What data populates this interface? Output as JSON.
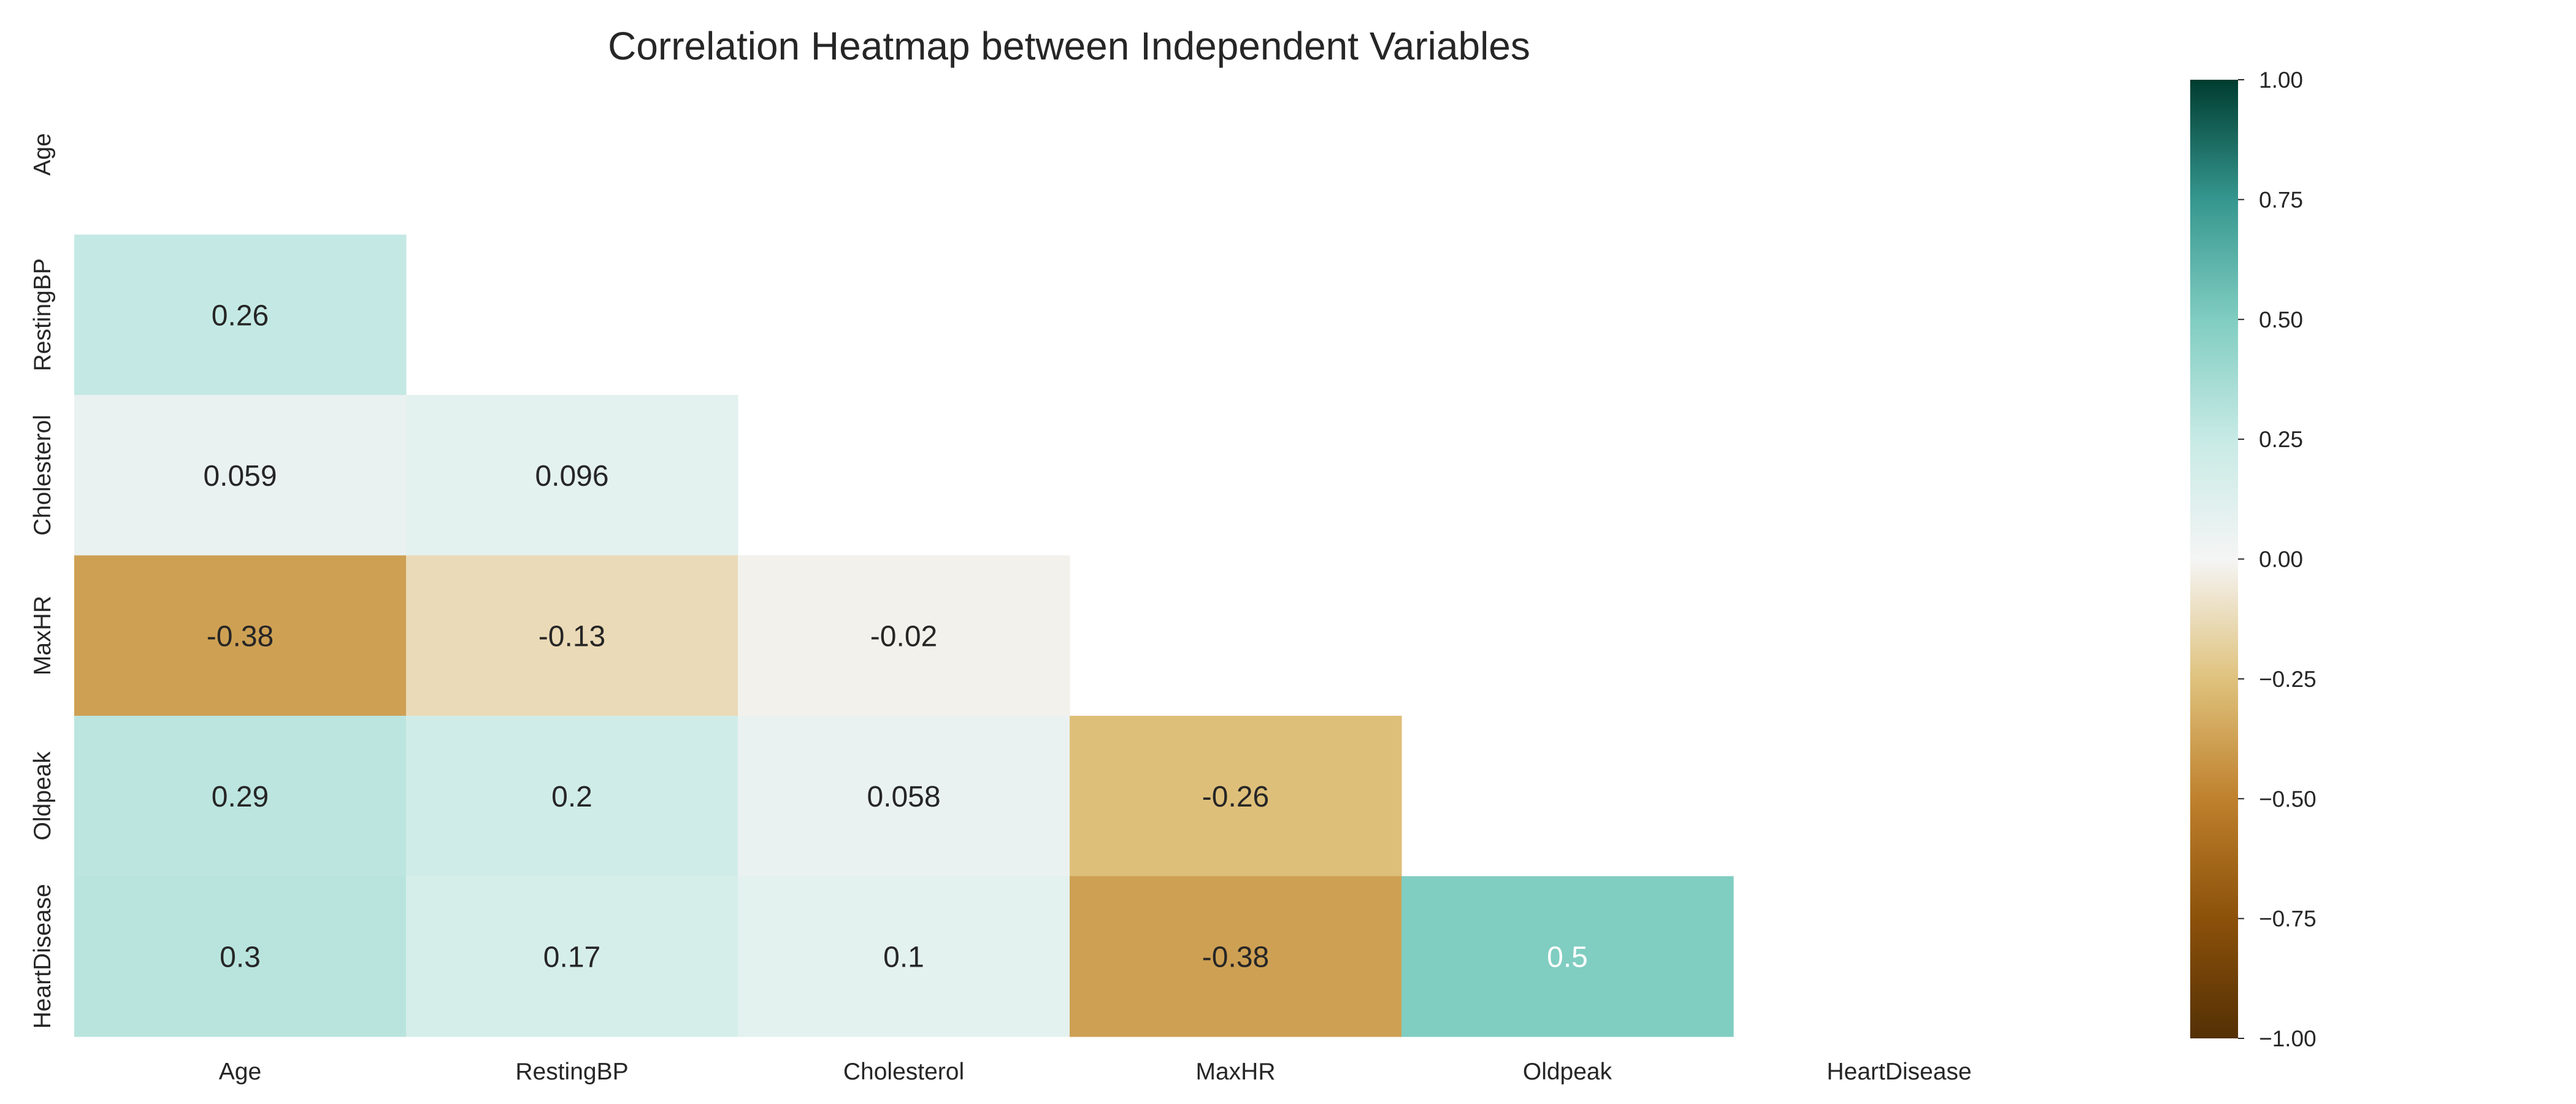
{
  "chart_data": {
    "type": "heatmap",
    "title": "Correlation Heatmap between Independent Variables",
    "variables": [
      "Age",
      "RestingBP",
      "Cholesterol",
      "MaxHR",
      "Oldpeak",
      "HeartDisease"
    ],
    "mask": "upper-triangle-and-diagonal",
    "cells": [
      {
        "row": "RestingBP",
        "col": "Age",
        "value": 0.26,
        "label": "0.26"
      },
      {
        "row": "Cholesterol",
        "col": "Age",
        "value": 0.059,
        "label": "0.059"
      },
      {
        "row": "Cholesterol",
        "col": "RestingBP",
        "value": 0.096,
        "label": "0.096"
      },
      {
        "row": "MaxHR",
        "col": "Age",
        "value": -0.38,
        "label": "-0.38"
      },
      {
        "row": "MaxHR",
        "col": "RestingBP",
        "value": -0.13,
        "label": "-0.13"
      },
      {
        "row": "MaxHR",
        "col": "Cholesterol",
        "value": -0.02,
        "label": "-0.02"
      },
      {
        "row": "Oldpeak",
        "col": "Age",
        "value": 0.29,
        "label": "0.29"
      },
      {
        "row": "Oldpeak",
        "col": "RestingBP",
        "value": 0.2,
        "label": "0.2"
      },
      {
        "row": "Oldpeak",
        "col": "Cholesterol",
        "value": 0.058,
        "label": "0.058"
      },
      {
        "row": "Oldpeak",
        "col": "MaxHR",
        "value": -0.26,
        "label": "-0.26"
      },
      {
        "row": "HeartDisease",
        "col": "Age",
        "value": 0.3,
        "label": "0.3"
      },
      {
        "row": "HeartDisease",
        "col": "RestingBP",
        "value": 0.17,
        "label": "0.17"
      },
      {
        "row": "HeartDisease",
        "col": "Cholesterol",
        "value": 0.1,
        "label": "0.1"
      },
      {
        "row": "HeartDisease",
        "col": "MaxHR",
        "value": -0.38,
        "label": "-0.38"
      },
      {
        "row": "HeartDisease",
        "col": "Oldpeak",
        "value": 0.5,
        "label": "0.5"
      }
    ],
    "colorbar": {
      "range": [
        -1,
        1
      ],
      "ticks": [
        1,
        0.75,
        0.5,
        0.25,
        0,
        -0.25,
        -0.5,
        -0.75,
        -1
      ],
      "tick_labels": [
        "1.00",
        "0.75",
        "0.50",
        "0.25",
        "0.00",
        "−0.25",
        "−0.50",
        "−0.75",
        "−1.00"
      ]
    },
    "colormap": {
      "name": "BrBG",
      "stops": [
        {
          "v": -1.0,
          "color": "#543005"
        },
        {
          "v": -0.75,
          "color": "#8c510a"
        },
        {
          "v": -0.5,
          "color": "#bf812d"
        },
        {
          "v": -0.25,
          "color": "#dfc27d"
        },
        {
          "v": 0.0,
          "color": "#f5f5f5"
        },
        {
          "v": 0.25,
          "color": "#c7eae5"
        },
        {
          "v": 0.5,
          "color": "#80cdc1"
        },
        {
          "v": 0.75,
          "color": "#35978f"
        },
        {
          "v": 1.0,
          "color": "#003c30"
        }
      ]
    },
    "grid": false
  }
}
